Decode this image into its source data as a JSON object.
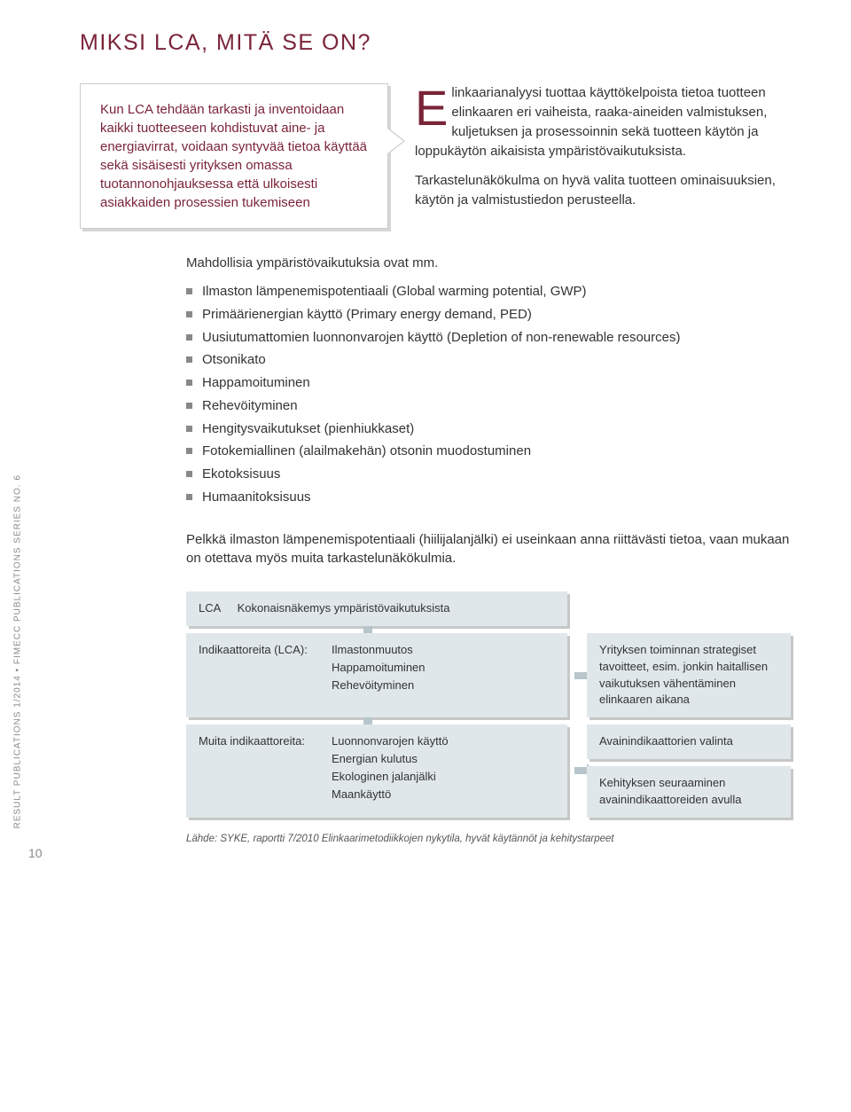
{
  "colors": {
    "accent": "#7a2438",
    "box_bg": "#e0e7ea",
    "box_shadow": "#c7c7c7",
    "bullet": "#888888"
  },
  "title": "MIKSI LCA, MITÄ SE ON?",
  "callout": "Kun LCA tehdään tarkasti ja inventoidaan kaikki tuotteeseen kohdistuvat aine- ja energiavirrat, voidaan syntyvää tietoa käyttää sekä sisäisesti yrityksen omassa tuotannonohjauksessa että ulkoisesti asiakkaiden prosessien tukemiseen",
  "intro": {
    "dropcap": "E",
    "p1_rest": "linkaarianalyysi tuottaa käyttökelpoista tietoa tuotteen elinkaaren eri vaiheista, raaka-aineiden valmistuksen, kuljetuksen ja prosessoinnin sekä tuotteen käytön ja loppukäytön aikaisista ympäristövaikutuksista.",
    "p2": "Tarkastelunäkökulma on hyvä valita tuotteen ominaisuuksien, käytön ja valmistustiedon perusteella."
  },
  "mid_intro": "Mahdollisia ympäristövaikutuksia ovat mm.",
  "env_items": [
    "Ilmaston lämpenemispotentiaali (Global warming potential, GWP)",
    "Primäärienergian käyttö (Primary energy demand, PED)",
    "Uusiutumattomien luonnonvarojen käyttö (Depletion of non-renewable resources)",
    "Otsonikato",
    "Happamoituminen",
    "Rehevöityminen",
    "Hengitysvaikutukset (pienhiukkaset)",
    "Fotokemiallinen (alailmakehän) otsonin muodostuminen",
    "Ekotoksisuus",
    "Humaanitoksisuus"
  ],
  "closing": "Pelkkä ilmaston lämpenemispotentiaali (hiilijalanjälki) ei useinkaan anna riittävästi tietoa, vaan mukaan on otettava myös muita tarkastelunäkökulmia.",
  "diagram": {
    "header_label": "LCA",
    "header_text": "Kokonaisnäkemys ympäristövaikutuksista",
    "row1": {
      "label": "Indikaattoreita (LCA):",
      "values": [
        "Ilmastonmuutos",
        "Happamoituminen",
        "Rehevöityminen"
      ],
      "right": "Yrityksen toiminnan strategiset tavoitteet, esim. jonkin haitallisen vaikutuksen vähentäminen elinkaaren aikana"
    },
    "row2": {
      "label": "Muita indikaattoreita:",
      "values": [
        "Luonnonvarojen käyttö",
        "Energian kulutus",
        "Ekologinen jalanjälki",
        "Maankäyttö"
      ],
      "right1": "Avainindikaattorien valinta",
      "right2": "Kehityksen seuraaminen avainindikaattoreiden avulla"
    },
    "source": "Lähde: SYKE, raportti 7/2010 Elinkaarimetodiikkojen nykytila, hyvät käytännöt ja kehitystarpeet"
  },
  "side_text": "RESULT PUBLICATIONS 1/2014 • FIMECC PUBLICATIONS SERIES NO. 6",
  "page_num": "10"
}
